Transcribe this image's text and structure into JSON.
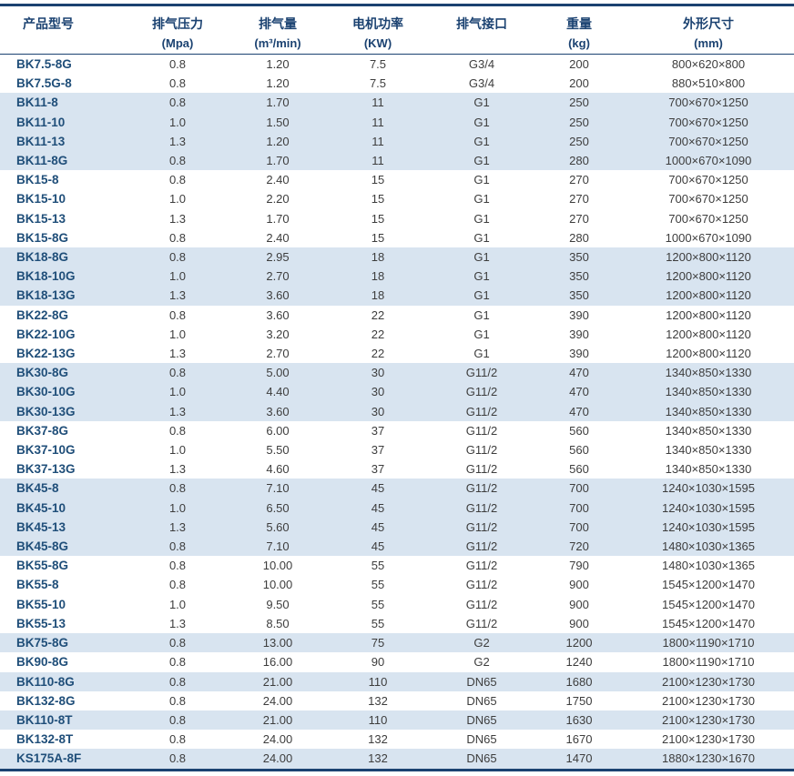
{
  "colors": {
    "navy_border": "#1b4271",
    "header_text": "#1b4271",
    "model_text": "#1f4e79",
    "data_text": "#3d3d3d",
    "row_shade": "#d8e4f0"
  },
  "table": {
    "columns": [
      {
        "id": "model",
        "title": "产品型号",
        "unit": ""
      },
      {
        "id": "pressure",
        "title": "排气压力",
        "unit": "(Mpa)"
      },
      {
        "id": "volume",
        "title": "排气量",
        "unit": "(m³/min)"
      },
      {
        "id": "power",
        "title": "电机功率",
        "unit": "(KW)"
      },
      {
        "id": "port",
        "title": "排气接口",
        "unit": ""
      },
      {
        "id": "weight",
        "title": "重量",
        "unit": "(kg)"
      },
      {
        "id": "dims",
        "title": "外形尺寸",
        "unit": "(mm)"
      }
    ],
    "rows": [
      {
        "model": "BK7.5-8G",
        "pressure": "0.8",
        "volume": "1.20",
        "power": "7.5",
        "port": "G3/4",
        "weight": "200",
        "dims": "800×620×800",
        "shaded": false
      },
      {
        "model": "BK7.5G-8",
        "pressure": "0.8",
        "volume": "1.20",
        "power": "7.5",
        "port": "G3/4",
        "weight": "200",
        "dims": "880×510×800",
        "shaded": false
      },
      {
        "model": "BK11-8",
        "pressure": "0.8",
        "volume": "1.70",
        "power": "11",
        "port": "G1",
        "weight": "250",
        "dims": "700×670×1250",
        "shaded": true
      },
      {
        "model": "BK11-10",
        "pressure": "1.0",
        "volume": "1.50",
        "power": "11",
        "port": "G1",
        "weight": "250",
        "dims": "700×670×1250",
        "shaded": true
      },
      {
        "model": "BK11-13",
        "pressure": "1.3",
        "volume": "1.20",
        "power": "11",
        "port": "G1",
        "weight": "250",
        "dims": "700×670×1250",
        "shaded": true
      },
      {
        "model": "BK11-8G",
        "pressure": "0.8",
        "volume": "1.70",
        "power": "11",
        "port": "G1",
        "weight": "280",
        "dims": "1000×670×1090",
        "shaded": true
      },
      {
        "model": "BK15-8",
        "pressure": "0.8",
        "volume": "2.40",
        "power": "15",
        "port": "G1",
        "weight": "270",
        "dims": "700×670×1250",
        "shaded": false
      },
      {
        "model": "BK15-10",
        "pressure": "1.0",
        "volume": "2.20",
        "power": "15",
        "port": "G1",
        "weight": "270",
        "dims": "700×670×1250",
        "shaded": false
      },
      {
        "model": "BK15-13",
        "pressure": "1.3",
        "volume": "1.70",
        "power": "15",
        "port": "G1",
        "weight": "270",
        "dims": "700×670×1250",
        "shaded": false
      },
      {
        "model": "BK15-8G",
        "pressure": "0.8",
        "volume": "2.40",
        "power": "15",
        "port": "G1",
        "weight": "280",
        "dims": "1000×670×1090",
        "shaded": false
      },
      {
        "model": "BK18-8G",
        "pressure": "0.8",
        "volume": "2.95",
        "power": "18",
        "port": "G1",
        "weight": "350",
        "dims": "1200×800×1120",
        "shaded": true
      },
      {
        "model": "BK18-10G",
        "pressure": "1.0",
        "volume": "2.70",
        "power": "18",
        "port": "G1",
        "weight": "350",
        "dims": "1200×800×1120",
        "shaded": true
      },
      {
        "model": "BK18-13G",
        "pressure": "1.3",
        "volume": "3.60",
        "power": "18",
        "port": "G1",
        "weight": "350",
        "dims": "1200×800×1120",
        "shaded": true
      },
      {
        "model": "BK22-8G",
        "pressure": "0.8",
        "volume": "3.60",
        "power": "22",
        "port": "G1",
        "weight": "390",
        "dims": "1200×800×1120",
        "shaded": false
      },
      {
        "model": "BK22-10G",
        "pressure": "1.0",
        "volume": "3.20",
        "power": "22",
        "port": "G1",
        "weight": "390",
        "dims": "1200×800×1120",
        "shaded": false
      },
      {
        "model": "BK22-13G",
        "pressure": "1.3",
        "volume": "2.70",
        "power": "22",
        "port": "G1",
        "weight": "390",
        "dims": "1200×800×1120",
        "shaded": false
      },
      {
        "model": "BK30-8G",
        "pressure": "0.8",
        "volume": "5.00",
        "power": "30",
        "port": "G11/2",
        "weight": "470",
        "dims": "1340×850×1330",
        "shaded": true
      },
      {
        "model": "BK30-10G",
        "pressure": "1.0",
        "volume": "4.40",
        "power": "30",
        "port": "G11/2",
        "weight": "470",
        "dims": "1340×850×1330",
        "shaded": true
      },
      {
        "model": "BK30-13G",
        "pressure": "1.3",
        "volume": "3.60",
        "power": "30",
        "port": "G11/2",
        "weight": "470",
        "dims": "1340×850×1330",
        "shaded": true
      },
      {
        "model": "BK37-8G",
        "pressure": "0.8",
        "volume": "6.00",
        "power": "37",
        "port": "G11/2",
        "weight": "560",
        "dims": "1340×850×1330",
        "shaded": false
      },
      {
        "model": "BK37-10G",
        "pressure": "1.0",
        "volume": "5.50",
        "power": "37",
        "port": "G11/2",
        "weight": "560",
        "dims": "1340×850×1330",
        "shaded": false
      },
      {
        "model": "BK37-13G",
        "pressure": "1.3",
        "volume": "4.60",
        "power": "37",
        "port": "G11/2",
        "weight": "560",
        "dims": "1340×850×1330",
        "shaded": false
      },
      {
        "model": "BK45-8",
        "pressure": "0.8",
        "volume": "7.10",
        "power": "45",
        "port": "G11/2",
        "weight": "700",
        "dims": "1240×1030×1595",
        "shaded": true
      },
      {
        "model": "BK45-10",
        "pressure": "1.0",
        "volume": "6.50",
        "power": "45",
        "port": "G11/2",
        "weight": "700",
        "dims": "1240×1030×1595",
        "shaded": true
      },
      {
        "model": "BK45-13",
        "pressure": "1.3",
        "volume": "5.60",
        "power": "45",
        "port": "G11/2",
        "weight": "700",
        "dims": "1240×1030×1595",
        "shaded": true
      },
      {
        "model": "BK45-8G",
        "pressure": "0.8",
        "volume": "7.10",
        "power": "45",
        "port": "G11/2",
        "weight": "720",
        "dims": "1480×1030×1365",
        "shaded": true
      },
      {
        "model": "BK55-8G",
        "pressure": "0.8",
        "volume": "10.00",
        "power": "55",
        "port": "G11/2",
        "weight": "790",
        "dims": "1480×1030×1365",
        "shaded": false
      },
      {
        "model": "BK55-8",
        "pressure": "0.8",
        "volume": "10.00",
        "power": "55",
        "port": "G11/2",
        "weight": "900",
        "dims": "1545×1200×1470",
        "shaded": false
      },
      {
        "model": "BK55-10",
        "pressure": "1.0",
        "volume": "9.50",
        "power": "55",
        "port": "G11/2",
        "weight": "900",
        "dims": "1545×1200×1470",
        "shaded": false
      },
      {
        "model": "BK55-13",
        "pressure": "1.3",
        "volume": "8.50",
        "power": "55",
        "port": "G11/2",
        "weight": "900",
        "dims": "1545×1200×1470",
        "shaded": false
      },
      {
        "model": "BK75-8G",
        "pressure": "0.8",
        "volume": "13.00",
        "power": "75",
        "port": "G2",
        "weight": "1200",
        "dims": "1800×1190×1710",
        "shaded": true
      },
      {
        "model": "BK90-8G",
        "pressure": "0.8",
        "volume": "16.00",
        "power": "90",
        "port": "G2",
        "weight": "1240",
        "dims": "1800×1190×1710",
        "shaded": false
      },
      {
        "model": "BK110-8G",
        "pressure": "0.8",
        "volume": "21.00",
        "power": "110",
        "port": "DN65",
        "weight": "1680",
        "dims": "2100×1230×1730",
        "shaded": true
      },
      {
        "model": "BK132-8G",
        "pressure": "0.8",
        "volume": "24.00",
        "power": "132",
        "port": "DN65",
        "weight": "1750",
        "dims": "2100×1230×1730",
        "shaded": false
      },
      {
        "model": "BK110-8T",
        "pressure": "0.8",
        "volume": "21.00",
        "power": "110",
        "port": "DN65",
        "weight": "1630",
        "dims": "2100×1230×1730",
        "shaded": true
      },
      {
        "model": "BK132-8T",
        "pressure": "0.8",
        "volume": "24.00",
        "power": "132",
        "port": "DN65",
        "weight": "1670",
        "dims": "2100×1230×1730",
        "shaded": false
      },
      {
        "model": "KS175A-8F",
        "pressure": "0.8",
        "volume": "24.00",
        "power": "132",
        "port": "DN65",
        "weight": "1470",
        "dims": "1880×1230×1670",
        "shaded": true
      }
    ]
  }
}
